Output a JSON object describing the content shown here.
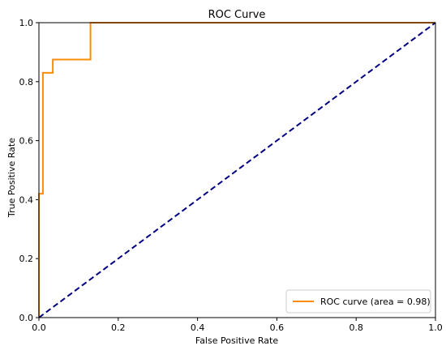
{
  "chart_data": {
    "type": "line",
    "title": "ROC Curve",
    "xlabel": "False Positive Rate",
    "ylabel": "True Positive Rate",
    "xlim": [
      0.0,
      1.0
    ],
    "ylim": [
      0.0,
      1.0
    ],
    "xticks": [
      "0.0",
      "0.2",
      "0.4",
      "0.6",
      "0.8",
      "1.0"
    ],
    "yticks": [
      "0.0",
      "0.2",
      "0.4",
      "0.6",
      "0.8",
      "1.0"
    ],
    "grid": false,
    "legend_position": "lower right",
    "series": [
      {
        "name": "ROC curve (area = 0.98)",
        "color": "#ff8c00",
        "style": "solid",
        "x": [
          0.0,
          0.0,
          0.0,
          0.0,
          0.01,
          0.01,
          0.01,
          0.01,
          0.035,
          0.035,
          0.13,
          0.13,
          1.0
        ],
        "y": [
          0.0,
          0.04,
          0.04,
          0.42,
          0.42,
          0.54,
          0.54,
          0.83,
          0.83,
          0.875,
          0.875,
          1.0,
          1.0
        ]
      },
      {
        "color": "#000080",
        "style": "dashed",
        "x": [
          0.0,
          1.0
        ],
        "y": [
          0.0,
          1.0
        ]
      }
    ]
  }
}
